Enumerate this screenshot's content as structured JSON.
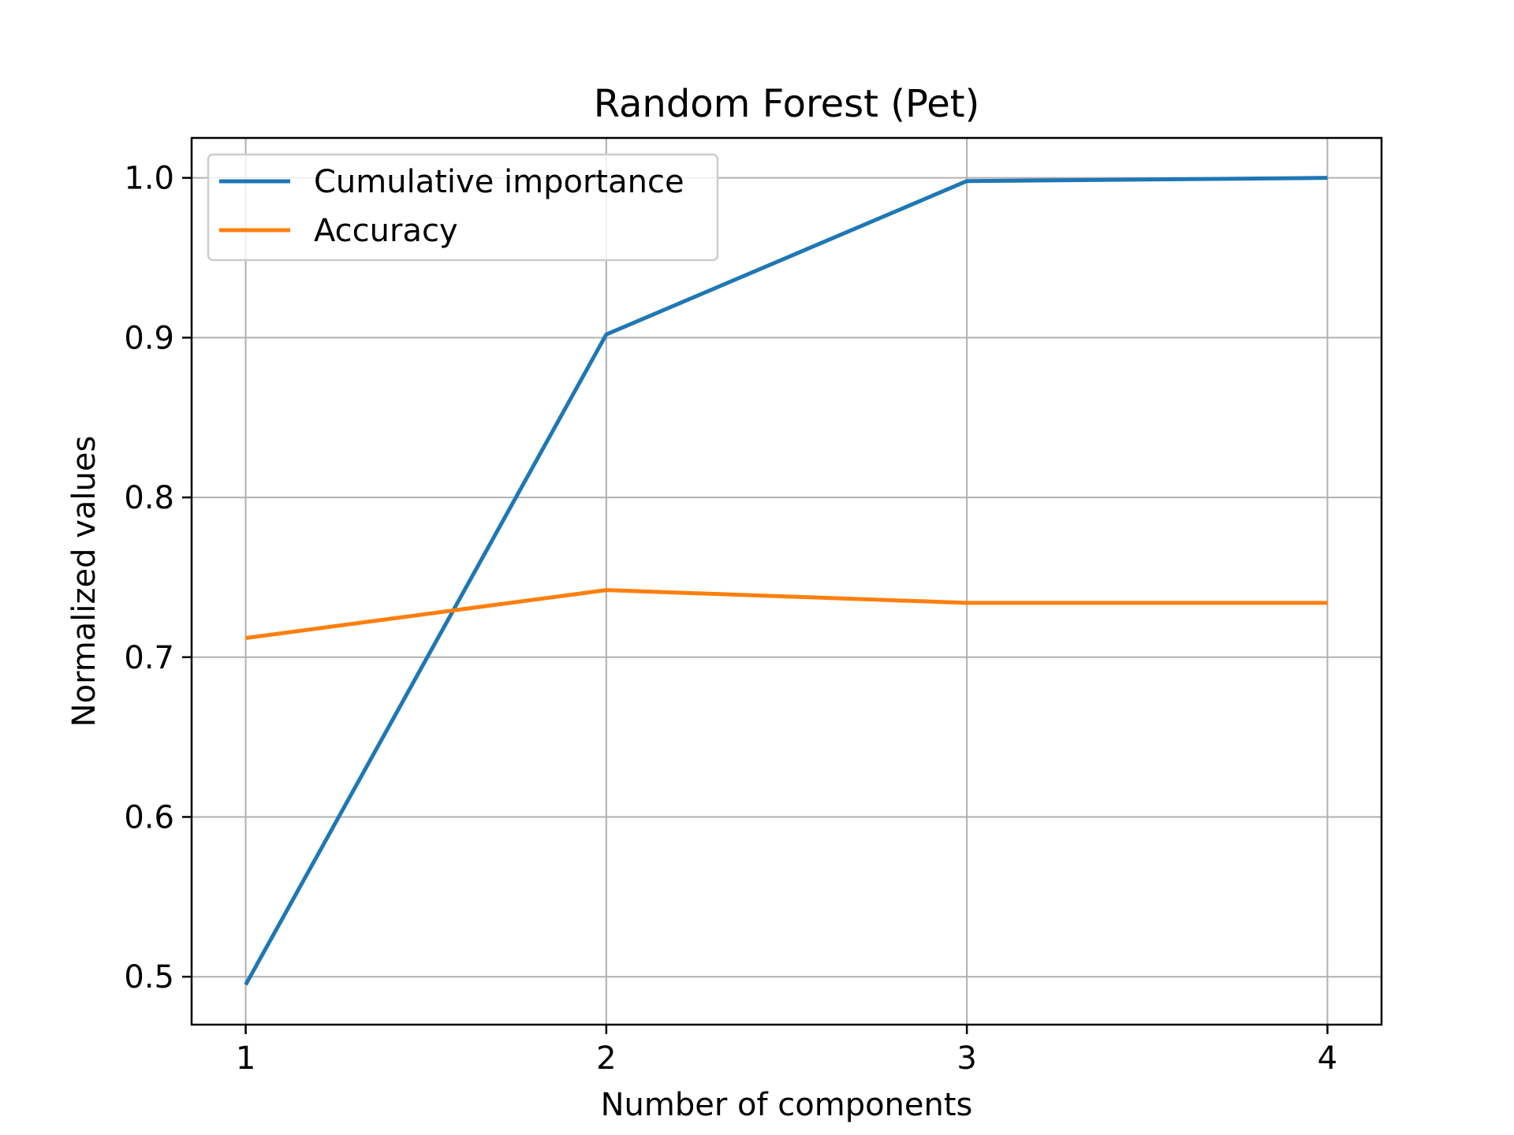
{
  "chart_data": {
    "type": "line",
    "title": "Random Forest (Pet)",
    "xlabel": "Number of components",
    "ylabel": "Normalized values",
    "x": [
      1,
      2,
      3,
      4
    ],
    "xticks": [
      1,
      2,
      3,
      4
    ],
    "xtick_labels": [
      "1",
      "2",
      "3",
      "4"
    ],
    "yticks": [
      0.5,
      0.6,
      0.7,
      0.8,
      0.9,
      1.0
    ],
    "ytick_labels": [
      "0.5",
      "0.6",
      "0.7",
      "0.8",
      "0.9",
      "1.0"
    ],
    "xlim": [
      0.85,
      4.15
    ],
    "ylim": [
      0.47,
      1.025
    ],
    "grid": true,
    "legend_position": "top-left",
    "series": [
      {
        "name": "Cumulative importance",
        "color": "#1f77b4",
        "values": [
          0.495,
          0.902,
          0.998,
          1.0
        ]
      },
      {
        "name": "Accuracy",
        "color": "#ff7f0e",
        "values": [
          0.712,
          0.742,
          0.734,
          0.734
        ]
      }
    ]
  }
}
